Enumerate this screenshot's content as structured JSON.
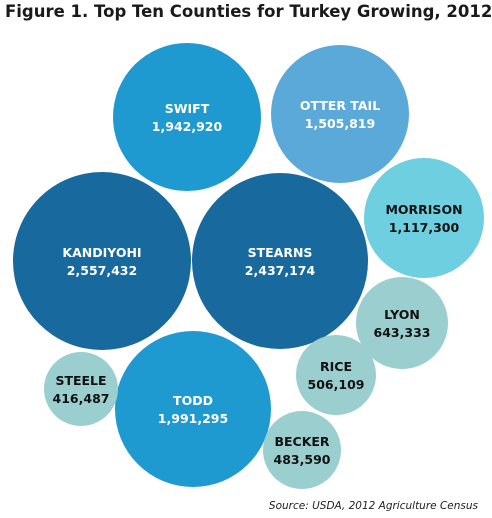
{
  "title": "Figure 1. Top Ten Counties for Turkey Growing, 2012",
  "source": "Source: USDA, 2012 Agriculture Census",
  "colors": {
    "dark": "#17699e",
    "medium": "#1f9ad0",
    "light_blue": "#5aa9d9",
    "aqua": "#6ecfe0",
    "teal": "#9bcfcf",
    "label_light": "#ffffff",
    "label_dark": "#111111"
  },
  "chart_data": {
    "type": "bubble",
    "title": "Figure 1. Top Ten Counties for Turkey Growing, 2012",
    "series": [
      {
        "name": "KANDIYOHI",
        "value": "2,557,432",
        "number": 2557432,
        "color_key": "dark"
      },
      {
        "name": "STEARNS",
        "value": "2,437,174",
        "number": 2437174,
        "color_key": "dark"
      },
      {
        "name": "TODD",
        "value": "1,991,295",
        "number": 1991295,
        "color_key": "medium"
      },
      {
        "name": "SWIFT",
        "value": "1,942,920",
        "number": 1942920,
        "color_key": "medium"
      },
      {
        "name": "OTTER TAIL",
        "value": "1,505,819",
        "number": 1505819,
        "color_key": "light_blue"
      },
      {
        "name": "MORRISON",
        "value": "1,117,300",
        "number": 1117300,
        "color_key": "aqua"
      },
      {
        "name": "LYON",
        "value": "643,333",
        "number": 643333,
        "color_key": "teal"
      },
      {
        "name": "RICE",
        "value": "506,109",
        "number": 506109,
        "color_key": "teal"
      },
      {
        "name": "BECKER",
        "value": "483,590",
        "number": 483590,
        "color_key": "teal"
      },
      {
        "name": "STEELE",
        "value": "416,487",
        "number": 416487,
        "color_key": "teal"
      }
    ]
  }
}
